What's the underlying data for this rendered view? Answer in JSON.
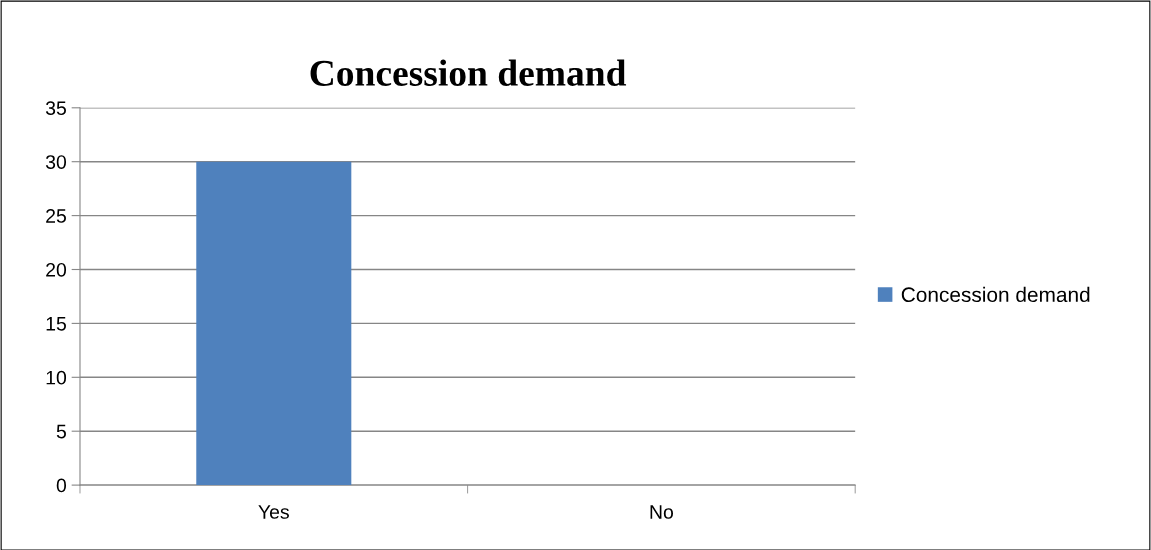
{
  "chart_data": {
    "type": "bar",
    "title": "Concession demand",
    "categories": [
      "Yes",
      "No"
    ],
    "series": [
      {
        "name": "Concession demand",
        "color": "#4f81bd",
        "values": [
          30,
          0
        ]
      }
    ],
    "ylim": [
      0,
      35
    ],
    "yticks": [
      0,
      5,
      10,
      15,
      20,
      25,
      30,
      35
    ],
    "grid": "y",
    "legend": "right"
  }
}
